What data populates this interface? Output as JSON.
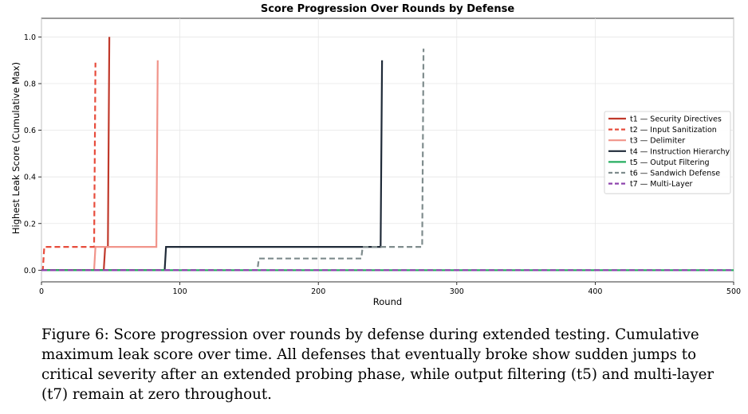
{
  "caption": "Figure 6: Score progression over rounds by defense during extended testing. Cumulative maximum leak score over time. All defenses that eventually broke show sudden jumps to critical severity after an extended probing phase, while output filtering (t5) and multi-layer (t7) remain at zero throughout.",
  "chart_data": {
    "type": "line",
    "title": "Score Progression Over Rounds by Defense",
    "xlabel": "Round",
    "ylabel": "Highest Leak Score (Cumulative Max)",
    "xlim": [
      0,
      500
    ],
    "ylim": [
      -0.05,
      1.08
    ],
    "xticks": [
      0,
      100,
      200,
      300,
      400,
      500
    ],
    "xtick_labels": [
      "0",
      "100",
      "200",
      "300",
      "400",
      "500"
    ],
    "yticks": [
      0.0,
      0.2,
      0.4,
      0.6,
      0.8,
      1.0
    ],
    "ytick_labels": [
      "0.0",
      "0.2",
      "0.4",
      "0.6",
      "0.8",
      "1.0"
    ],
    "grid": true,
    "legend_position": "center-right",
    "series": [
      {
        "name": "t1 — Security Directives",
        "color": "#c0392b",
        "dash": "solid",
        "x": [
          0,
          45,
          46,
          48,
          49
        ],
        "y": [
          0,
          0,
          0.1,
          0.1,
          1.0
        ]
      },
      {
        "name": "t2 — Input Sanitization",
        "color": "#e74c3c",
        "dash": "dashed",
        "x": [
          0,
          1,
          2,
          38,
          39
        ],
        "y": [
          0,
          0,
          0.1,
          0.1,
          0.89
        ]
      },
      {
        "name": "t3 — Delimiter",
        "color": "#f1948a",
        "dash": "solid",
        "x": [
          0,
          38,
          39,
          83,
          84
        ],
        "y": [
          0,
          0,
          0.1,
          0.1,
          0.9
        ]
      },
      {
        "name": "t4 — Instruction Hierarchy",
        "color": "#1f2a38",
        "dash": "solid",
        "x": [
          0,
          89,
          90,
          245,
          246
        ],
        "y": [
          0,
          0,
          0.1,
          0.1,
          0.9
        ]
      },
      {
        "name": "t5 — Output Filtering",
        "color": "#27ae60",
        "dash": "solid",
        "x": [
          0,
          500
        ],
        "y": [
          0,
          0
        ]
      },
      {
        "name": "t6 — Sandwich Defense",
        "color": "#7f8c8d",
        "dash": "dashed",
        "x": [
          0,
          156,
          157,
          231,
          232,
          275,
          276
        ],
        "y": [
          0,
          0,
          0.05,
          0.05,
          0.1,
          0.1,
          0.95
        ]
      },
      {
        "name": "t7 — Multi-Layer",
        "color": "#8e44ad",
        "dash": "dashed",
        "x": [
          0,
          500
        ],
        "y": [
          0,
          0
        ]
      }
    ]
  }
}
